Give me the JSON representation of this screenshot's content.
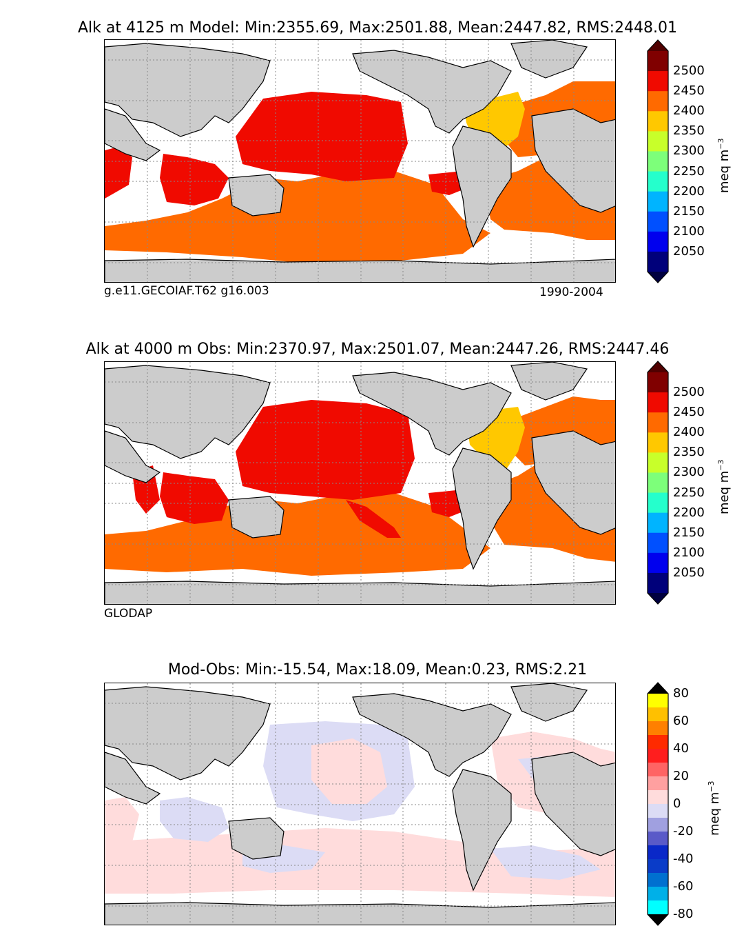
{
  "panels": [
    {
      "title": "Alk at 4125 m Model: Min:2355.69, Max:2501.88, Mean:2447.82, RMS:2448.01",
      "left_note": "g.e11.GECOIAF.T62 g16.003",
      "right_note": "1990-2004",
      "colorbar": {
        "label": "meq m",
        "label_sup": "−3",
        "ticks": [
          "2500",
          "2450",
          "2400",
          "2350",
          "2300",
          "2250",
          "2200",
          "2150",
          "2100",
          "2050"
        ],
        "colors": [
          "#800000",
          "#f00a00",
          "#ff6a00",
          "#ffc800",
          "#c8ff2a",
          "#7dff7a",
          "#25ffcc",
          "#00b4ff",
          "#0050ff",
          "#0000ee",
          "#00007a"
        ],
        "top_color": "#500000",
        "bottom_color": "#000040"
      }
    },
    {
      "title": "Alk at 4000 m Obs: Min:2370.97, Max:2501.07, Mean:2447.26, RMS:2447.46",
      "left_note": "GLODAP",
      "right_note": "",
      "colorbar": {
        "label": "meq m",
        "label_sup": "−3",
        "ticks": [
          "2500",
          "2450",
          "2400",
          "2350",
          "2300",
          "2250",
          "2200",
          "2150",
          "2100",
          "2050"
        ],
        "colors": [
          "#800000",
          "#f00a00",
          "#ff6a00",
          "#ffc800",
          "#c8ff2a",
          "#7dff7a",
          "#25ffcc",
          "#00b4ff",
          "#0050ff",
          "#0000ee",
          "#00007a"
        ],
        "top_color": "#500000",
        "bottom_color": "#000040"
      }
    },
    {
      "title": "Mod-Obs: Min:-15.54, Max:18.09, Mean:0.23, RMS:2.21",
      "left_note": "",
      "right_note": "",
      "colorbar": {
        "label": "meq m",
        "label_sup": "−3",
        "ticks": [
          "80",
          "60",
          "40",
          "20",
          "0",
          "-20",
          "-40",
          "-60",
          "-80"
        ],
        "colors": [
          "#ffff00",
          "#ffc000",
          "#ff8000",
          "#ff2a00",
          "#ff1e1e",
          "#ff6464",
          "#ffa0a0",
          "#ffdcdc",
          "#dcdcf5",
          "#a0a0e0",
          "#5a5ac8",
          "#0a28c8",
          "#0a3cc8",
          "#0070d0",
          "#00b0e8",
          "#00ffff"
        ],
        "top_color": "#000000",
        "bottom_color": "#000000"
      }
    }
  ],
  "colors": {
    "land": "#cccccc",
    "ocean_empty": "#ffffff",
    "grid": "#888888"
  }
}
